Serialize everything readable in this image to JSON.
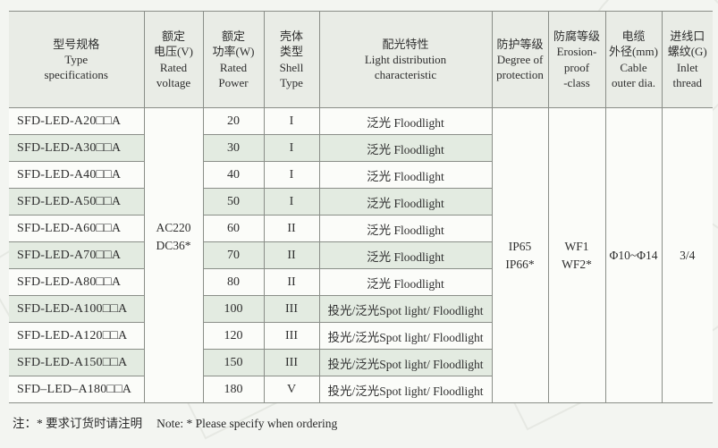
{
  "colors": {
    "page_bg": "#f3f5f1",
    "header_bg": "#e9ece6",
    "band_green": "#e3ebe1",
    "border_gray": "#8a8e88"
  },
  "note": {
    "cn": "注：* 要求订货时请注明",
    "en": "Note: * Please specify when ordering"
  },
  "table": {
    "headers": {
      "type": {
        "lines": [
          "型号规格",
          "Type",
          "specifications"
        ]
      },
      "voltage": {
        "lines": [
          "额定",
          "电压(V)",
          "Rated",
          "voltage"
        ]
      },
      "power": {
        "lines": [
          "额定",
          "功率(W)",
          "Rated",
          "Power"
        ]
      },
      "shell": {
        "lines": [
          "壳体",
          "类型",
          "Shell",
          "Type"
        ]
      },
      "light": {
        "lines": [
          "配光特性",
          "Light distribution",
          "characteristic"
        ]
      },
      "protection": {
        "lines": [
          "防护等级",
          "Degree of",
          "protection"
        ]
      },
      "erosion": {
        "lines": [
          "防腐等级",
          "Erosion-",
          "proof",
          "-class"
        ]
      },
      "cable": {
        "lines": [
          "电缆",
          "外径(mm)",
          "Cable",
          "outer dia."
        ]
      },
      "inlet": {
        "lines": [
          "进线口",
          "螺纹(G)",
          "Inlet",
          "thread"
        ]
      }
    },
    "merged": {
      "voltage": {
        "lines": [
          "AC220",
          "DC36*"
        ]
      },
      "protection": {
        "lines": [
          "IP65",
          "IP66*"
        ]
      },
      "erosion": {
        "lines": [
          "WF1",
          "WF2*"
        ]
      },
      "cable": "Φ10~Φ14",
      "inlet": "3/4"
    },
    "rows": [
      {
        "model": "SFD-LED-A20□□A",
        "power": "20",
        "shell": "I",
        "light": "泛光 Floodlight"
      },
      {
        "model": "SFD-LED-A30□□A",
        "power": "30",
        "shell": "I",
        "light": "泛光 Floodlight"
      },
      {
        "model": "SFD-LED-A40□□A",
        "power": "40",
        "shell": "I",
        "light": "泛光 Floodlight"
      },
      {
        "model": "SFD-LED-A50□□A",
        "power": "50",
        "shell": "I",
        "light": "泛光 Floodlight"
      },
      {
        "model": "SFD-LED-A60□□A",
        "power": "60",
        "shell": "II",
        "light": "泛光 Floodlight"
      },
      {
        "model": "SFD-LED-A70□□A",
        "power": "70",
        "shell": "II",
        "light": "泛光 Floodlight"
      },
      {
        "model": "SFD-LED-A80□□A",
        "power": "80",
        "shell": "II",
        "light": "泛光 Floodlight"
      },
      {
        "model": "SFD-LED-A100□□A",
        "power": "100",
        "shell": "III",
        "light": "投光/泛光Spot light/ Floodlight"
      },
      {
        "model": "SFD-LED-A120□□A",
        "power": "120",
        "shell": "III",
        "light": "投光/泛光Spot light/ Floodlight"
      },
      {
        "model": "SFD-LED-A150□□A",
        "power": "150",
        "shell": "III",
        "light": "投光/泛光Spot light/ Floodlight"
      },
      {
        "model": "SFD–LED–A180□□A",
        "power": "180",
        "shell": "V",
        "light": "投光/泛光Spot light/ Floodlight"
      }
    ]
  }
}
